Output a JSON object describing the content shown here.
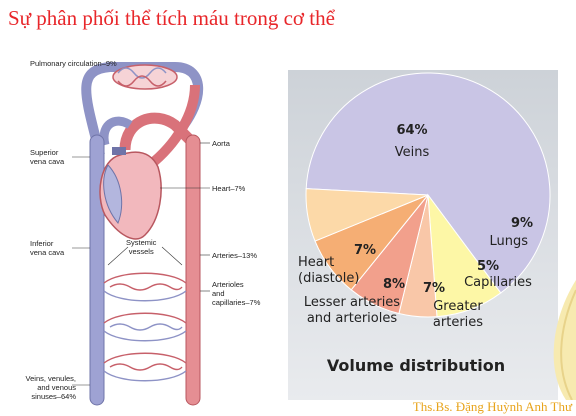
{
  "title": "Sự phân phối thể tích máu trong cơ thể",
  "footer": "Ths.Bs. Đặng Huỳnh Anh Thư",
  "circulation_labels": {
    "pulmonary": "Pulmonary circulation–9%",
    "superior_vena_cava": [
      "Superior",
      "vena cava"
    ],
    "inferior_vena_cava": [
      "Inferior",
      "vena cava"
    ],
    "aorta": "Aorta",
    "heart": "Heart–7%",
    "systemic_vessels": [
      "Systemic",
      "vessels"
    ],
    "arteries": "Arteries–13%",
    "arterioles": [
      "Arterioles",
      "and",
      "capillaries–7%"
    ],
    "veins": [
      "Veins, venules,",
      "and venous",
      "sinuses–64%"
    ]
  },
  "chart_data": {
    "type": "pie",
    "title": "Volume distribution",
    "slices": [
      {
        "pct": "64%",
        "name": [
          "Veins"
        ],
        "value": 64,
        "color": "#c9c5e5"
      },
      {
        "pct": "9%",
        "name": [
          "Lungs"
        ],
        "value": 9,
        "color": "#fdf7a6"
      },
      {
        "pct": "5%",
        "name": [
          "Capillaries"
        ],
        "value": 5,
        "color": "#f9c7a8"
      },
      {
        "pct": "7%",
        "name": [
          "Greater",
          "arteries"
        ],
        "value": 7,
        "color": "#f2a08c"
      },
      {
        "pct": "8%",
        "name": [
          "Lesser arteries",
          "and arterioles"
        ],
        "value": 8,
        "color": "#f5ae74"
      },
      {
        "pct": "7%",
        "name": [
          "Heart",
          "(diastole)"
        ],
        "value": 7,
        "color": "#fcd9a8"
      }
    ]
  }
}
